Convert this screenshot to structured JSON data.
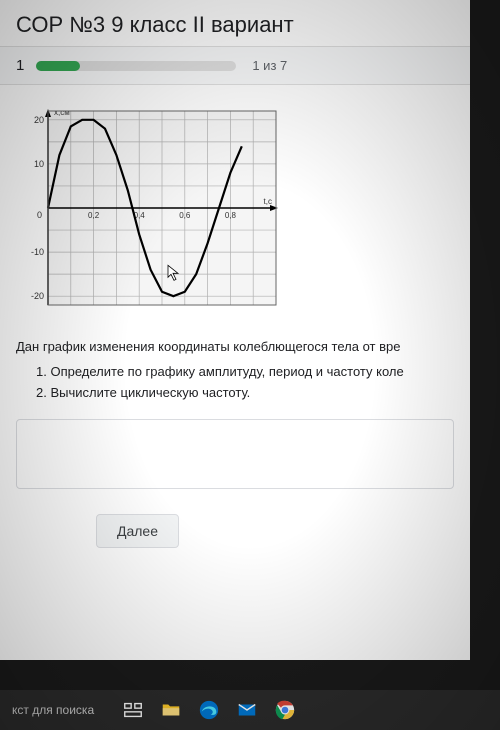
{
  "header": {
    "title": "СОР №3 9 класс II вариант"
  },
  "progress": {
    "current_tab": "1",
    "label": "1 из 7",
    "fill_percent": 22,
    "fill_color": "#34a853",
    "track_color": "#e0e0e0"
  },
  "chart": {
    "type": "line",
    "title": "x,см",
    "xlabel": "t,c",
    "x_ticks": [
      "0",
      "0.2",
      "0.4",
      "0.6",
      "0.8"
    ],
    "y_ticks": [
      "-20",
      "-10",
      "0",
      "10",
      "20"
    ],
    "xlim": [
      0,
      1.0
    ],
    "ylim": [
      -22,
      22
    ],
    "grid_color": "#b0b0b0",
    "axis_color": "#000000",
    "line_color": "#000000",
    "line_width": 2.2,
    "background_color": "#f5f5f5",
    "series": [
      {
        "x": 0.0,
        "y": 0
      },
      {
        "x": 0.05,
        "y": 12
      },
      {
        "x": 0.1,
        "y": 18.5
      },
      {
        "x": 0.15,
        "y": 20
      },
      {
        "x": 0.2,
        "y": 20
      },
      {
        "x": 0.25,
        "y": 18
      },
      {
        "x": 0.3,
        "y": 12
      },
      {
        "x": 0.35,
        "y": 4
      },
      {
        "x": 0.4,
        "y": -6
      },
      {
        "x": 0.45,
        "y": -14
      },
      {
        "x": 0.5,
        "y": -19
      },
      {
        "x": 0.55,
        "y": -20
      },
      {
        "x": 0.6,
        "y": -19
      },
      {
        "x": 0.65,
        "y": -15
      },
      {
        "x": 0.7,
        "y": -8
      },
      {
        "x": 0.75,
        "y": 0
      },
      {
        "x": 0.8,
        "y": 8
      },
      {
        "x": 0.85,
        "y": 14
      }
    ]
  },
  "question": {
    "intro": "Дан график изменения координаты колеблющегося тела от вре",
    "items": [
      "1. Определите по графику амплитуду, период и частоту коле",
      "2. Вычислите циклическую частоту."
    ]
  },
  "buttons": {
    "next": "Далее"
  },
  "taskbar": {
    "search_hint": "кст для поиска",
    "icons": [
      "task-view-icon",
      "explorer-icon",
      "edge-icon",
      "mail-icon",
      "chrome-icon"
    ]
  },
  "colors": {
    "page_bg": "#ffffff",
    "body_bg": "#1a1a1a",
    "taskbar_bg": "#2b2b2b",
    "text": "#202124",
    "muted": "#5f6368"
  }
}
